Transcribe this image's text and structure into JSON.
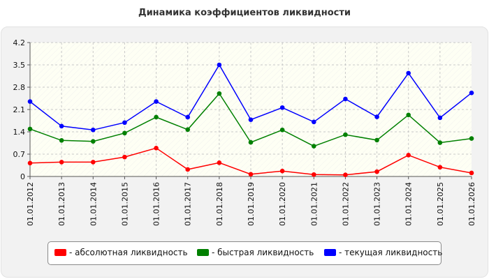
{
  "chart_data": {
    "type": "line",
    "title": "Динамика коэффициентов ликвидности",
    "xlabel": "",
    "ylabel": "",
    "categories": [
      "01.01.2012",
      "01.01.2013",
      "01.01.2014",
      "01.01.2015",
      "01.01.2016",
      "01.01.2017",
      "01.01.2018",
      "01.01.2019",
      "01.01.2020",
      "01.01.2021",
      "01.01.2022",
      "01.01.2023",
      "01.01.2024",
      "01.01.2025",
      "01.01.2026"
    ],
    "ylim": [
      0,
      4.2
    ],
    "yticks": [
      "0",
      "0.7",
      "1.4",
      "2.1",
      "2.8",
      "3.5",
      "4.2"
    ],
    "grid": true,
    "legend_position": "bottom",
    "series": [
      {
        "name": "- абсолютная ликвидность",
        "color": "#ff0000",
        "values": [
          0.42,
          0.45,
          0.45,
          0.61,
          0.89,
          0.22,
          0.43,
          0.07,
          0.17,
          0.06,
          0.05,
          0.15,
          0.67,
          0.29,
          0.11
        ]
      },
      {
        "name": "- быстрая ликвидность",
        "color": "#008000",
        "values": [
          1.49,
          1.13,
          1.1,
          1.36,
          1.86,
          1.47,
          2.6,
          1.07,
          1.46,
          0.95,
          1.31,
          1.14,
          1.93,
          1.06,
          1.19
        ]
      },
      {
        "name": "- текущая ликвидность",
        "color": "#0000ff",
        "values": [
          2.35,
          1.58,
          1.46,
          1.69,
          2.35,
          1.86,
          3.5,
          1.78,
          2.16,
          1.71,
          2.43,
          1.87,
          3.24,
          1.84,
          2.62
        ]
      }
    ]
  }
}
